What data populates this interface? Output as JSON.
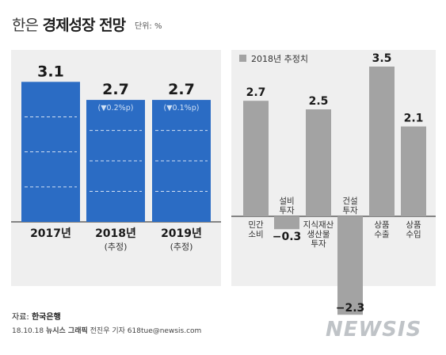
{
  "title": {
    "light": "한은",
    "bold": "경제성장 전망",
    "unit": "단위: %"
  },
  "chart_data": [
    {
      "type": "bar",
      "categories": [
        "2017년",
        "2018년",
        "2019년"
      ],
      "category_sublabels": [
        "",
        "(추정)",
        "(추정)"
      ],
      "values": [
        3.1,
        2.7,
        2.7
      ],
      "value_labels": [
        "3.1",
        "2.7",
        "2.7"
      ],
      "annotations": [
        "",
        "(▼0.2%p)",
        "(▼0.1%p)"
      ],
      "color": "#2b6cc4"
    },
    {
      "type": "bar",
      "legend": "2018년 추정치",
      "categories": [
        "민간\n소비",
        "설비\n투자",
        "지식재산\n생산물\n투자",
        "건설\n투자",
        "상품\n수출",
        "상품\n수입"
      ],
      "values": [
        2.7,
        -0.3,
        2.5,
        -2.3,
        3.5,
        2.1
      ],
      "value_labels": [
        "2.7",
        "−0.3",
        "2.5",
        "−2.3",
        "3.5",
        "2.1"
      ],
      "color": "#a3a3a3"
    }
  ],
  "footer": {
    "source_label": "자료:",
    "source": "한국은행",
    "credit_date": "18.10.18",
    "credit_name": "뉴시스 그래픽",
    "credit_rest": "전진우 기자  618tue@newsis.com"
  },
  "logo": "NEWSIS"
}
